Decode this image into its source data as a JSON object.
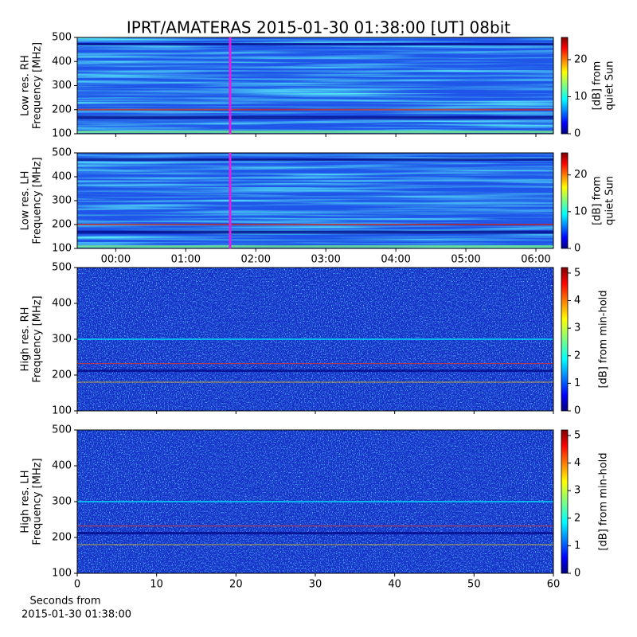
{
  "chart_data": [
    {
      "type": "heatmap",
      "title": "IPRT/AMATERAS 2015-01-30 01:38:00 [UT]   08bit",
      "colormap": "jet",
      "ylabel": [
        "Low res. RH",
        "Frequency [MHz]"
      ],
      "ylim": [
        100,
        500
      ],
      "yticks": [
        100,
        200,
        300,
        400,
        500
      ],
      "xlim": [
        -33,
        375
      ],
      "clabel": [
        "[dB] from",
        "quiet Sun"
      ],
      "clim": [
        0,
        26
      ],
      "cticks": [
        0,
        10,
        20
      ],
      "markers": [
        {
          "x": 98,
          "color": "#e020e0"
        }
      ]
    },
    {
      "type": "heatmap",
      "colormap": "jet",
      "ylabel": [
        "Low res. LH",
        "Frequency [MHz]"
      ],
      "ylim": [
        100,
        500
      ],
      "yticks": [
        100,
        200,
        300,
        400,
        500
      ],
      "xlim": [
        -33,
        375
      ],
      "xticks": [
        {
          "value": 0,
          "label": "00:00"
        },
        {
          "value": 60,
          "label": "01:00"
        },
        {
          "value": 120,
          "label": "02:00"
        },
        {
          "value": 180,
          "label": "03:00"
        },
        {
          "value": 240,
          "label": "04:00"
        },
        {
          "value": 300,
          "label": "05:00"
        },
        {
          "value": 360,
          "label": "06:00"
        }
      ],
      "clabel": [
        "[dB] from",
        "quiet Sun"
      ],
      "clim": [
        0,
        26
      ],
      "cticks": [
        0,
        10,
        20
      ],
      "markers": [
        {
          "x": 98,
          "color": "#e020e0"
        }
      ]
    },
    {
      "type": "heatmap",
      "colormap": "jet",
      "ylabel": [
        "High res. RH",
        "Frequency [MHz]"
      ],
      "ylim": [
        100,
        500
      ],
      "yticks": [
        100,
        200,
        300,
        400,
        500
      ],
      "xlim": [
        0,
        60
      ],
      "clabel": [
        "[dB] from min-hold"
      ],
      "clim": [
        0,
        5.2
      ],
      "cticks": [
        0,
        1,
        2,
        3,
        4,
        5
      ]
    },
    {
      "type": "heatmap",
      "colormap": "jet",
      "ylabel": [
        "High res. LH",
        "Frequency [MHz]"
      ],
      "ylim": [
        100,
        500
      ],
      "yticks": [
        100,
        200,
        300,
        400,
        500
      ],
      "xlim": [
        0,
        60
      ],
      "xticks": [
        0,
        10,
        20,
        30,
        40,
        50,
        60
      ],
      "xlabel": [
        "Seconds from",
        "2015-01-30 01:38:00"
      ],
      "clabel": [
        "[dB] from min-hold"
      ],
      "clim": [
        0,
        5.2
      ],
      "cticks": [
        0,
        1,
        2,
        3,
        4,
        5
      ]
    }
  ]
}
